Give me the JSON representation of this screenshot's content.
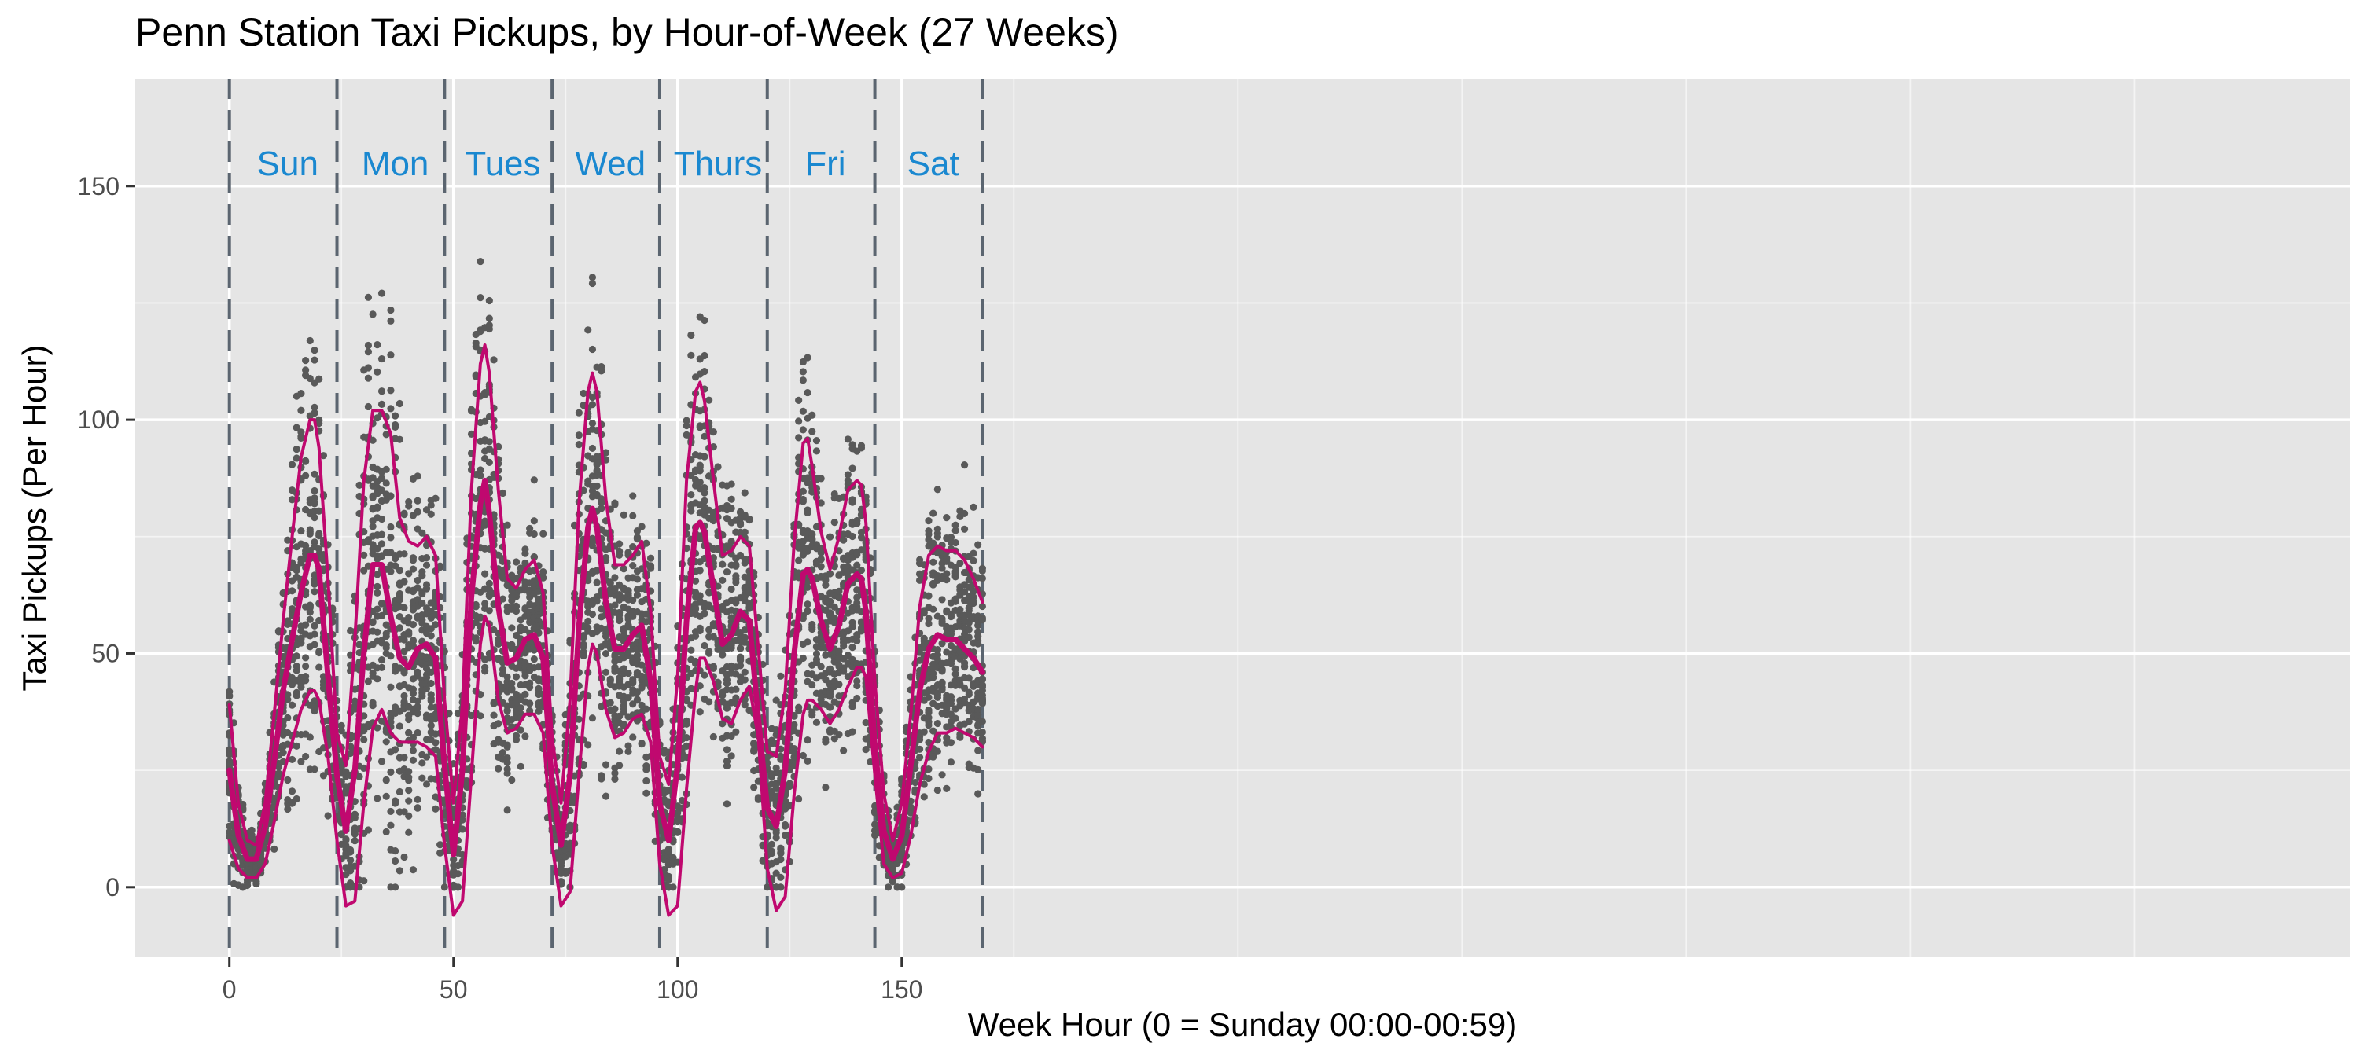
{
  "chart_data": {
    "type": "scatter",
    "title": "Penn Station Taxi Pickups, by Hour-of-Week (27 Weeks)",
    "xlabel": "Week Hour (0 = Sunday 00:00-00:59)",
    "ylabel": "Taxi Pickups (Per Hour)",
    "xlim": [
      -21,
      473
    ],
    "ylim": [
      -15,
      173
    ],
    "x_ticks": [
      0,
      50,
      100,
      150
    ],
    "y_ticks": [
      0,
      50,
      100,
      150
    ],
    "grid": true,
    "day_boundaries": [
      0,
      24,
      48,
      72,
      96,
      120,
      144,
      168
    ],
    "day_labels": [
      {
        "label": "Sun",
        "x": 13,
        "y": 155
      },
      {
        "label": "Mon",
        "x": 37,
        "y": 155
      },
      {
        "label": "Tues",
        "x": 61,
        "y": 155
      },
      {
        "label": "Wed",
        "x": 85,
        "y": 155
      },
      {
        "label": "Thurs",
        "x": 109,
        "y": 155
      },
      {
        "label": "Fri",
        "x": 133,
        "y": 155
      },
      {
        "label": "Sat",
        "x": 157,
        "y": 155
      }
    ],
    "colors": {
      "panel": "#e5e5e5",
      "grid": "#ffffff",
      "points": "#595959",
      "lines": "#c0086f",
      "day_label": "#1a88d0",
      "boundary": "#5b6570"
    },
    "series": [
      {
        "role": "median",
        "x": [
          0,
          2,
          4,
          6,
          8,
          10,
          12,
          14,
          16,
          18,
          19,
          20,
          22,
          24,
          26,
          28,
          30,
          32,
          34,
          36,
          38,
          40,
          42,
          44,
          46,
          48,
          50,
          52,
          54,
          56,
          57,
          58,
          60,
          62,
          64,
          66,
          68,
          70,
          72,
          74,
          76,
          78,
          80,
          81,
          82,
          84,
          86,
          88,
          90,
          92,
          94,
          96,
          98,
          100,
          102,
          104,
          105,
          106,
          108,
          110,
          112,
          114,
          116,
          118,
          120,
          122,
          124,
          126,
          128,
          129,
          130,
          132,
          134,
          136,
          138,
          140,
          141,
          142,
          144,
          146,
          148,
          150,
          152,
          154,
          156,
          158,
          160,
          162,
          164,
          166,
          168
        ],
        "y": [
          25,
          11,
          6,
          6,
          13,
          27,
          42,
          53,
          63,
          71,
          71,
          68,
          45,
          24,
          12,
          25,
          50,
          69,
          69,
          58,
          49,
          47,
          51,
          52,
          49,
          26,
          7,
          25,
          62,
          82,
          87,
          80,
          60,
          48,
          49,
          53,
          54,
          49,
          22,
          9,
          24,
          56,
          77,
          81,
          77,
          61,
          51,
          51,
          54,
          56,
          44,
          18,
          10,
          26,
          57,
          77,
          78,
          76,
          64,
          52,
          54,
          59,
          57,
          36,
          17,
          13,
          25,
          50,
          67,
          68,
          66,
          57,
          51,
          56,
          65,
          67,
          66,
          59,
          30,
          12,
          6,
          11,
          26,
          42,
          51,
          54,
          53,
          53,
          51,
          49,
          46
        ]
      },
      {
        "role": "upper",
        "x": [
          0,
          2,
          4,
          6,
          8,
          10,
          12,
          14,
          16,
          18,
          19,
          20,
          22,
          24,
          26,
          28,
          30,
          32,
          34,
          36,
          38,
          40,
          42,
          44,
          46,
          48,
          50,
          52,
          54,
          56,
          57,
          58,
          60,
          62,
          64,
          66,
          68,
          70,
          72,
          74,
          76,
          78,
          80,
          81,
          82,
          84,
          86,
          88,
          90,
          92,
          94,
          96,
          98,
          100,
          102,
          104,
          105,
          106,
          108,
          110,
          112,
          114,
          116,
          118,
          120,
          122,
          124,
          126,
          128,
          129,
          130,
          132,
          134,
          136,
          138,
          140,
          141,
          142,
          144,
          146,
          148,
          150,
          152,
          154,
          156,
          158,
          160,
          162,
          164,
          166,
          168
        ],
        "y": [
          39,
          18,
          10,
          9,
          18,
          37,
          57,
          75,
          92,
          100,
          100,
          94,
          66,
          33,
          26,
          53,
          87,
          102,
          102,
          97,
          79,
          74,
          73,
          75,
          71,
          40,
          18,
          39,
          85,
          112,
          116,
          110,
          85,
          66,
          64,
          68,
          70,
          63,
          32,
          18,
          40,
          82,
          106,
          110,
          106,
          83,
          69,
          69,
          71,
          74,
          59,
          28,
          22,
          45,
          87,
          106,
          108,
          104,
          87,
          71,
          72,
          75,
          73,
          51,
          29,
          28,
          42,
          74,
          95,
          96,
          90,
          76,
          68,
          75,
          85,
          87,
          86,
          78,
          44,
          20,
          10,
          18,
          37,
          60,
          71,
          73,
          72,
          72,
          70,
          66,
          61
        ]
      },
      {
        "role": "lower",
        "x": [
          0,
          2,
          4,
          6,
          8,
          10,
          12,
          14,
          16,
          18,
          19,
          20,
          22,
          24,
          26,
          28,
          30,
          32,
          34,
          36,
          38,
          40,
          42,
          44,
          46,
          48,
          50,
          52,
          54,
          56,
          57,
          58,
          60,
          62,
          64,
          66,
          68,
          70,
          72,
          74,
          76,
          78,
          80,
          81,
          82,
          84,
          86,
          88,
          90,
          92,
          94,
          96,
          98,
          100,
          102,
          104,
          105,
          106,
          108,
          110,
          112,
          114,
          116,
          118,
          120,
          122,
          124,
          126,
          128,
          129,
          130,
          132,
          134,
          136,
          138,
          140,
          141,
          142,
          144,
          146,
          148,
          150,
          152,
          154,
          156,
          158,
          160,
          162,
          164,
          166,
          168
        ],
        "y": [
          10,
          4,
          2,
          2,
          5,
          14,
          24,
          31,
          38,
          42,
          42,
          40,
          28,
          10,
          -4,
          -3,
          18,
          34,
          38,
          33,
          31,
          31,
          31,
          30,
          28,
          9,
          -6,
          -3,
          24,
          52,
          58,
          56,
          40,
          33,
          34,
          37,
          37,
          33,
          9,
          -4,
          -1,
          24,
          47,
          52,
          50,
          38,
          32,
          33,
          36,
          37,
          31,
          5,
          -6,
          -4,
          21,
          42,
          49,
          49,
          44,
          36,
          35,
          40,
          43,
          32,
          4,
          -5,
          -2,
          20,
          37,
          40,
          40,
          38,
          35,
          38,
          43,
          47,
          47,
          45,
          24,
          5,
          2,
          3,
          11,
          22,
          29,
          33,
          33,
          34,
          33,
          32,
          30
        ]
      }
    ]
  }
}
